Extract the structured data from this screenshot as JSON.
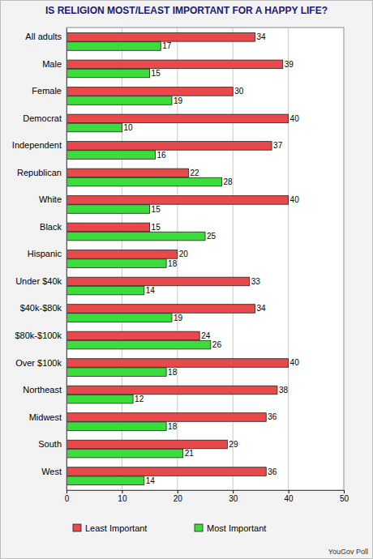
{
  "chart_data": {
    "type": "bar",
    "orientation": "horizontal",
    "title": "IS RELIGION MOST/LEAST IMPORTANT FOR A HAPPY LIFE?",
    "categories": [
      "All adults",
      "Male",
      "Female",
      "Democrat",
      "Independent",
      "Republican",
      "White",
      "Black",
      "Hispanic",
      "Under $40k",
      "$40k-$80k",
      "$80k-$100k",
      "Over $100k",
      "Northeast",
      "Midwest",
      "South",
      "West"
    ],
    "series": [
      {
        "name": "Least Important",
        "color": "#e8494b",
        "values": [
          34,
          39,
          30,
          40,
          37,
          22,
          40,
          15,
          20,
          33,
          34,
          24,
          40,
          38,
          36,
          29,
          36
        ]
      },
      {
        "name": "Most Important",
        "color": "#3ddc3d",
        "values": [
          17,
          15,
          19,
          10,
          16,
          28,
          15,
          25,
          18,
          14,
          19,
          26,
          18,
          12,
          18,
          21,
          14
        ]
      }
    ],
    "xlim": [
      0,
      50
    ],
    "xticks": [
      0,
      10,
      20,
      30,
      40,
      50
    ],
    "grid": true,
    "legend": "bottom",
    "data_labels": true,
    "annotations": [
      "YouGov Poll"
    ]
  }
}
